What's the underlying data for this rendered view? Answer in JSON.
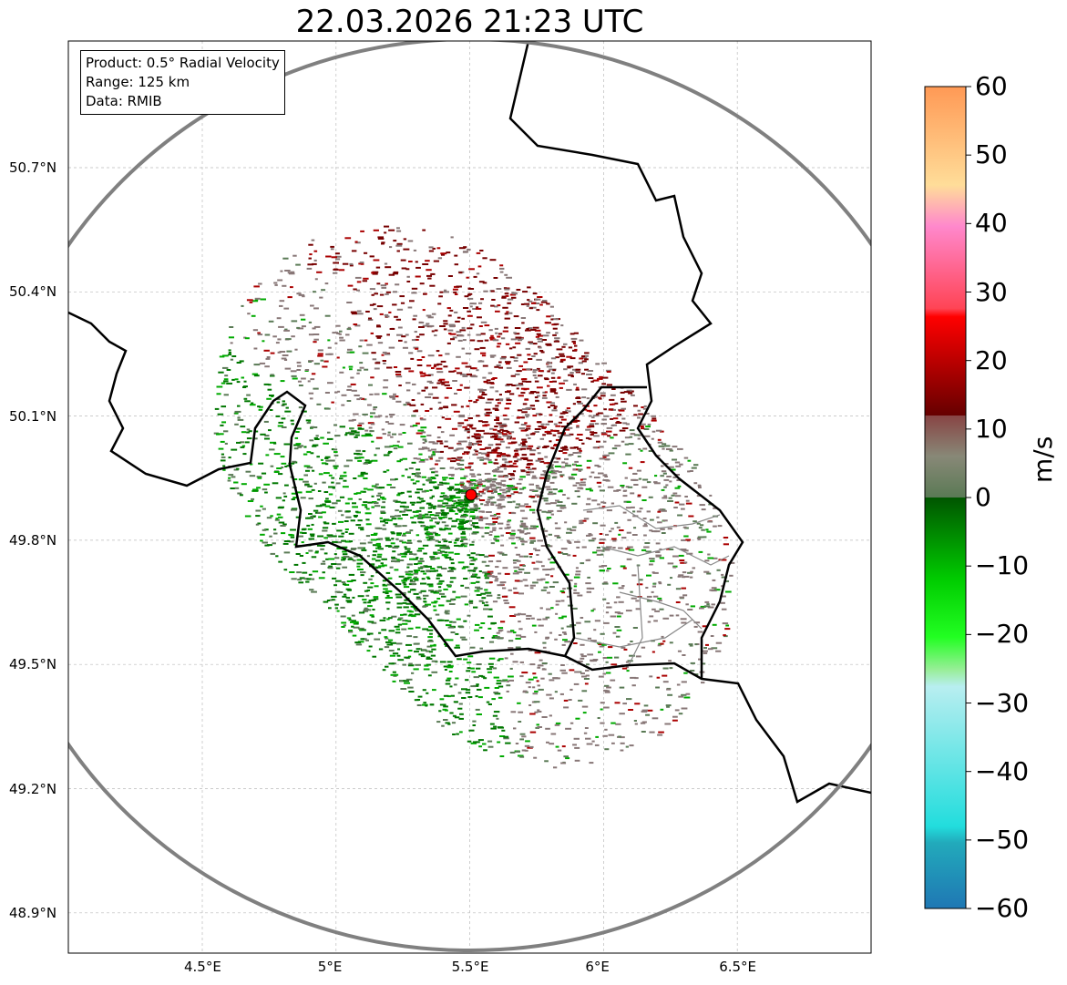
{
  "title": "22.03.2026 21:23 UTC",
  "info_box": {
    "product": "Product: 0.5° Radial Velocity",
    "range": "Range: 125 km",
    "data": "Data: RMIB"
  },
  "lat_labels": [
    "50.7°N",
    "50.4°N",
    "50.1°N",
    "49.8°N",
    "49.5°N",
    "49.2°N",
    "48.9°N"
  ],
  "lon_labels": [
    "4.5°E",
    "5°E",
    "5.5°E",
    "6°E",
    "6.5°E"
  ],
  "colorbar": {
    "label": "m/s",
    "ticks": [
      "60",
      "50",
      "40",
      "30",
      "20",
      "10",
      "0",
      "−10",
      "−20",
      "−30",
      "−40",
      "−50",
      "−60"
    ],
    "min": -60,
    "max": 60
  },
  "colors": {
    "radar_site": "#ff0000",
    "range_ring": "#808080",
    "border": "#000000"
  }
}
